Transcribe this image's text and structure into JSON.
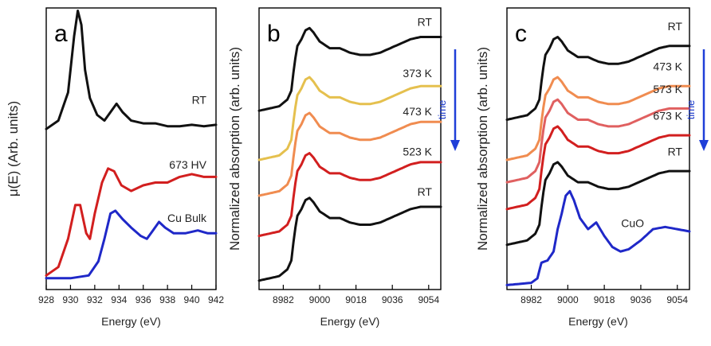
{
  "colors": {
    "black": "#111111",
    "red": "#d21f1f",
    "blue": "#1f28c8",
    "yellow": "#e5c04e",
    "orange": "#f08c50",
    "salmon": "#e06060",
    "time_arrow": "#1f3fd8"
  },
  "chart_data": [
    {
      "type": "line",
      "panel": "a",
      "xlabel": "Energy (eV)",
      "ylabel": "μ(E) (Arb. units)",
      "xlim": [
        928,
        942
      ],
      "xticks": [
        928,
        930,
        932,
        934,
        936,
        938,
        940,
        942
      ],
      "y_ticks_shown": false,
      "series": [
        {
          "name": "RT",
          "color": "black",
          "points": [
            [
              928,
              0.57
            ],
            [
              929,
              0.6
            ],
            [
              929.8,
              0.7
            ],
            [
              930.3,
              0.9
            ],
            [
              930.6,
              0.99
            ],
            [
              930.9,
              0.94
            ],
            [
              931.2,
              0.78
            ],
            [
              931.6,
              0.68
            ],
            [
              932.2,
              0.62
            ],
            [
              932.8,
              0.6
            ],
            [
              933.3,
              0.63
            ],
            [
              933.8,
              0.66
            ],
            [
              934.3,
              0.63
            ],
            [
              935,
              0.6
            ],
            [
              936,
              0.59
            ],
            [
              937,
              0.59
            ],
            [
              938,
              0.58
            ],
            [
              939,
              0.58
            ],
            [
              940,
              0.585
            ],
            [
              941,
              0.58
            ],
            [
              942,
              0.585
            ]
          ]
        },
        {
          "name": "673 HV",
          "color": "red",
          "points": [
            [
              928,
              0.05
            ],
            [
              929,
              0.08
            ],
            [
              929.8,
              0.18
            ],
            [
              930.4,
              0.3
            ],
            [
              930.8,
              0.3
            ],
            [
              931.3,
              0.2
            ],
            [
              931.6,
              0.18
            ],
            [
              932,
              0.27
            ],
            [
              932.6,
              0.38
            ],
            [
              933.1,
              0.43
            ],
            [
              933.6,
              0.42
            ],
            [
              934.2,
              0.37
            ],
            [
              935,
              0.35
            ],
            [
              936,
              0.37
            ],
            [
              937,
              0.38
            ],
            [
              938,
              0.38
            ],
            [
              939,
              0.4
            ],
            [
              940,
              0.41
            ],
            [
              941,
              0.4
            ],
            [
              942,
              0.4
            ]
          ]
        },
        {
          "name": "Cu Bulk",
          "color": "blue",
          "points": [
            [
              928,
              0.04
            ],
            [
              930,
              0.04
            ],
            [
              931.5,
              0.05
            ],
            [
              932.3,
              0.1
            ],
            [
              932.8,
              0.18
            ],
            [
              933.3,
              0.27
            ],
            [
              933.7,
              0.28
            ],
            [
              934.3,
              0.25
            ],
            [
              935,
              0.22
            ],
            [
              935.8,
              0.19
            ],
            [
              936.3,
              0.18
            ],
            [
              936.8,
              0.21
            ],
            [
              937.3,
              0.24
            ],
            [
              937.8,
              0.22
            ],
            [
              938.5,
              0.2
            ],
            [
              939.5,
              0.2
            ],
            [
              940.5,
              0.21
            ],
            [
              941.3,
              0.2
            ],
            [
              942,
              0.2
            ]
          ]
        }
      ]
    },
    {
      "type": "line",
      "panel": "b",
      "xlabel": "Energy (eV)",
      "ylabel": "Normalized absorption (arb. units)",
      "xlim": [
        8970,
        9060
      ],
      "xticks": [
        8982,
        9000,
        9018,
        9036,
        9054
      ],
      "y_ticks_shown": false,
      "annotation": "time",
      "series": [
        {
          "name": "RT",
          "color": "black",
          "offset": 0.82
        },
        {
          "name": "373 K",
          "color": "yellow",
          "offset": 0.6
        },
        {
          "name": "473 K",
          "color": "orange",
          "offset": 0.44
        },
        {
          "name": "523 K",
          "color": "red",
          "offset": 0.26
        },
        {
          "name": "RT",
          "color": "black",
          "offset": 0.06
        }
      ],
      "base_shape": [
        [
          8970,
          -0.02
        ],
        [
          8980,
          0
        ],
        [
          8984,
          0.03
        ],
        [
          8986,
          0.07
        ],
        [
          8987.5,
          0.19
        ],
        [
          8989,
          0.27
        ],
        [
          8991,
          0.3
        ],
        [
          8993,
          0.34
        ],
        [
          8995,
          0.35
        ],
        [
          8997,
          0.33
        ],
        [
          9000,
          0.29
        ],
        [
          9005,
          0.26
        ],
        [
          9010,
          0.26
        ],
        [
          9015,
          0.24
        ],
        [
          9020,
          0.23
        ],
        [
          9025,
          0.23
        ],
        [
          9030,
          0.24
        ],
        [
          9035,
          0.26
        ],
        [
          9040,
          0.28
        ],
        [
          9045,
          0.3
        ],
        [
          9050,
          0.31
        ],
        [
          9055,
          0.31
        ],
        [
          9060,
          0.31
        ]
      ]
    },
    {
      "type": "line",
      "panel": "c",
      "xlabel": "Energy (eV)",
      "ylabel": "Normalized absorption (arb. units)",
      "xlim": [
        8970,
        9060
      ],
      "xticks": [
        8982,
        9000,
        9018,
        9036,
        9054
      ],
      "y_ticks_shown": false,
      "annotation": "time",
      "series": [
        {
          "name": "RT",
          "color": "black",
          "offset": 0.78
        },
        {
          "name": "473 K",
          "color": "orange",
          "offset": 0.6
        },
        {
          "name": "573 K",
          "color": "salmon",
          "offset": 0.5
        },
        {
          "name": "673 K",
          "color": "red",
          "offset": 0.38
        },
        {
          "name": "RT",
          "color": "black",
          "offset": 0.22
        },
        {
          "name": "CuO",
          "color": "blue",
          "offset": 0.02
        }
      ],
      "base_shape": [
        [
          8970,
          -0.02
        ],
        [
          8980,
          0
        ],
        [
          8984,
          0.03
        ],
        [
          8986,
          0.07
        ],
        [
          8987.5,
          0.19
        ],
        [
          8989,
          0.27
        ],
        [
          8991,
          0.3
        ],
        [
          8993,
          0.34
        ],
        [
          8995,
          0.35
        ],
        [
          8997,
          0.33
        ],
        [
          9000,
          0.29
        ],
        [
          9005,
          0.26
        ],
        [
          9010,
          0.26
        ],
        [
          9015,
          0.24
        ],
        [
          9020,
          0.23
        ],
        [
          9025,
          0.23
        ],
        [
          9030,
          0.24
        ],
        [
          9035,
          0.26
        ],
        [
          9040,
          0.28
        ],
        [
          9045,
          0.3
        ],
        [
          9050,
          0.31
        ],
        [
          9055,
          0.31
        ],
        [
          9060,
          0.31
        ]
      ],
      "cuo_shape": [
        [
          8970,
          0
        ],
        [
          8982,
          0.01
        ],
        [
          8985,
          0.03
        ],
        [
          8987,
          0.1
        ],
        [
          8990,
          0.11
        ],
        [
          8993,
          0.15
        ],
        [
          8995,
          0.25
        ],
        [
          8997,
          0.32
        ],
        [
          8999,
          0.4
        ],
        [
          9001,
          0.42
        ],
        [
          9003,
          0.38
        ],
        [
          9006,
          0.3
        ],
        [
          9010,
          0.25
        ],
        [
          9014,
          0.28
        ],
        [
          9018,
          0.22
        ],
        [
          9022,
          0.17
        ],
        [
          9026,
          0.15
        ],
        [
          9030,
          0.16
        ],
        [
          9036,
          0.2
        ],
        [
          9042,
          0.25
        ],
        [
          9048,
          0.26
        ],
        [
          9054,
          0.25
        ],
        [
          9060,
          0.24
        ]
      ]
    }
  ]
}
